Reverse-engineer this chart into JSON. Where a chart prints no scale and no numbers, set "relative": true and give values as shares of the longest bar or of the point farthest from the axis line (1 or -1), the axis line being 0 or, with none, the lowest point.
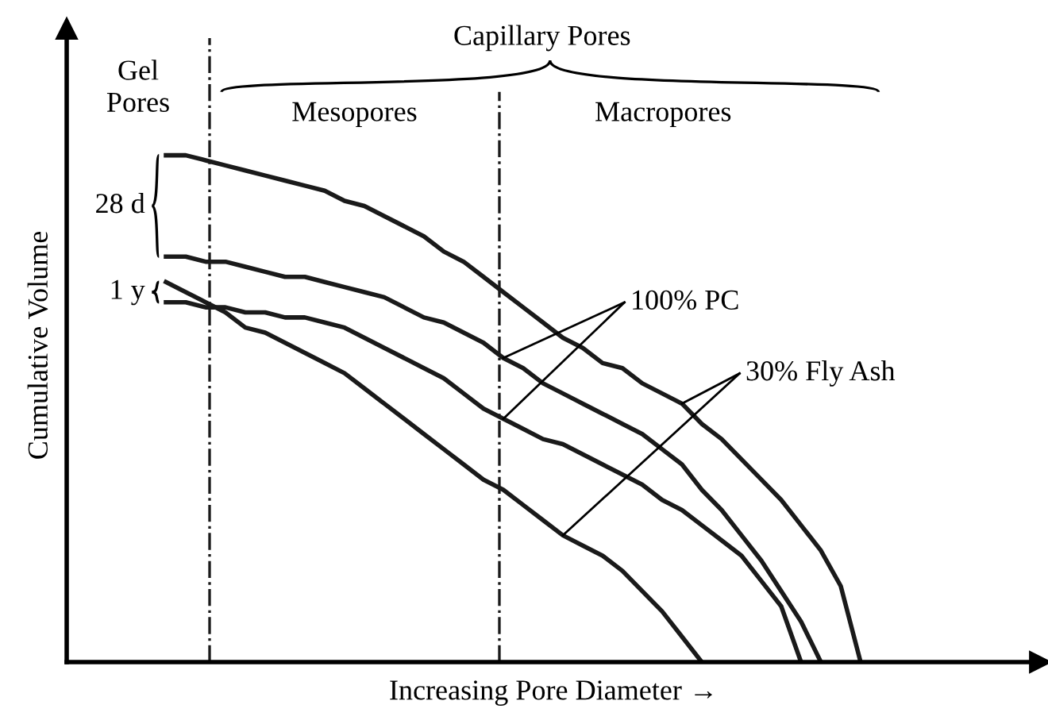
{
  "chart_data": {
    "type": "line",
    "relative": true,
    "xlabel": "Increasing Pore Diameter →",
    "ylabel": "Cumulative Volume",
    "legend": false,
    "marker": "none",
    "line_style": "solid",
    "categories": [
      null,
      null,
      null,
      null,
      null,
      null,
      null,
      null,
      null,
      null,
      null,
      null,
      null,
      null,
      null,
      null,
      null,
      null,
      null,
      null,
      null,
      null,
      null,
      null,
      null,
      null,
      null,
      null,
      null,
      null,
      null,
      null,
      null,
      null,
      null,
      null,
      null,
      null,
      null,
      null,
      null,
      null,
      null,
      null,
      null,
      null,
      null,
      null,
      null
    ],
    "series": [
      {
        "color": "#1a1a1a",
        "values": [
          null,
          null,
          null,
          null,
          null,
          1.0,
          1.0,
          0.99,
          0.98,
          0.97,
          0.96,
          0.95,
          0.94,
          0.93,
          0.91,
          0.9,
          0.88,
          0.86,
          0.84,
          0.81,
          0.79,
          0.76,
          0.73,
          0.7,
          0.67,
          0.64,
          0.62,
          0.59,
          0.58,
          0.55,
          0.53,
          0.51,
          0.47,
          0.44,
          0.4,
          0.36,
          0.32,
          0.27,
          0.22,
          0.15,
          0,
          null,
          null,
          null,
          null,
          null,
          null,
          null,
          null
        ]
      },
      {
        "color": "#1a1a1a",
        "values": [
          null,
          null,
          null,
          null,
          null,
          0.8,
          0.8,
          0.79,
          0.79,
          0.78,
          0.77,
          0.76,
          0.76,
          0.75,
          0.74,
          0.73,
          0.72,
          0.7,
          0.68,
          0.67,
          0.65,
          0.63,
          0.6,
          0.58,
          0.55,
          0.53,
          0.51,
          0.49,
          0.47,
          0.45,
          0.42,
          0.39,
          0.34,
          0.3,
          0.25,
          0.2,
          0.14,
          0.08,
          0,
          null,
          null,
          null,
          null,
          null,
          null,
          null,
          null,
          null,
          null
        ]
      },
      {
        "color": "#1a1a1a",
        "values": [
          null,
          null,
          null,
          null,
          null,
          0.71,
          0.71,
          0.7,
          0.7,
          0.69,
          0.69,
          0.68,
          0.68,
          0.67,
          0.66,
          0.64,
          0.62,
          0.6,
          0.58,
          0.56,
          0.53,
          0.5,
          0.48,
          0.46,
          0.44,
          0.43,
          0.41,
          0.39,
          0.37,
          0.35,
          0.32,
          0.3,
          0.27,
          0.24,
          0.21,
          0.16,
          0.11,
          0,
          null,
          null,
          null,
          null,
          null,
          null,
          null,
          null,
          null,
          null,
          null
        ]
      },
      {
        "color": "#1a1a1a",
        "values": [
          null,
          null,
          null,
          null,
          null,
          0.75,
          0.73,
          0.71,
          0.69,
          0.66,
          0.65,
          0.63,
          0.61,
          0.59,
          0.57,
          0.54,
          0.51,
          0.48,
          0.45,
          0.42,
          0.39,
          0.36,
          0.34,
          0.31,
          0.28,
          0.25,
          0.23,
          0.21,
          0.18,
          0.14,
          0.1,
          0.05,
          0,
          null,
          null,
          null,
          null,
          null,
          null,
          null,
          null,
          null,
          null,
          null,
          null,
          null,
          null,
          null,
          null
        ]
      }
    ],
    "annotations": [
      "Gel\nPores",
      "Capillary Pores",
      "Mesopores",
      "Macropores",
      "28 d",
      "1 y",
      "100% PC",
      "30% Fly Ash"
    ]
  }
}
